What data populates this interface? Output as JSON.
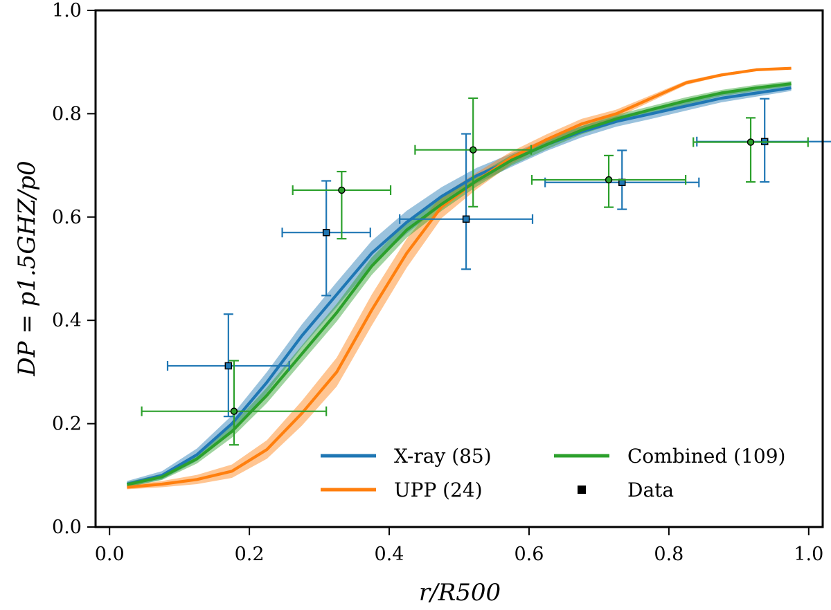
{
  "chart_data": {
    "type": "line",
    "xlabel": "r/R500",
    "ylabel": "DP = p1.5GHZ/p0",
    "xlim": [
      -0.02,
      1.02
    ],
    "ylim": [
      0.0,
      1.0
    ],
    "xticks": [
      "0.0",
      "0.2",
      "0.4",
      "0.6",
      "0.8",
      "1.0"
    ],
    "yticks": [
      "0.0",
      "0.2",
      "0.4",
      "0.6",
      "0.8",
      "1.0"
    ],
    "legend_position": "lower-right",
    "series": [
      {
        "name": "X-ray (85)",
        "color": "#1f77b4",
        "x": [
          0.025,
          0.075,
          0.125,
          0.175,
          0.225,
          0.275,
          0.325,
          0.375,
          0.425,
          0.475,
          0.525,
          0.575,
          0.625,
          0.675,
          0.725,
          0.775,
          0.825,
          0.875,
          0.925,
          0.975
        ],
        "y": [
          0.083,
          0.1,
          0.14,
          0.2,
          0.28,
          0.37,
          0.45,
          0.53,
          0.59,
          0.64,
          0.68,
          0.71,
          0.74,
          0.765,
          0.785,
          0.8,
          0.815,
          0.83,
          0.84,
          0.85
        ],
        "band": [
          0.006,
          0.008,
          0.012,
          0.016,
          0.02,
          0.022,
          0.024,
          0.024,
          0.022,
          0.018,
          0.015,
          0.013,
          0.012,
          0.011,
          0.01,
          0.01,
          0.009,
          0.008,
          0.007,
          0.006
        ]
      },
      {
        "name": "UPP (24)",
        "color": "#ff7f0e",
        "x": [
          0.025,
          0.075,
          0.125,
          0.175,
          0.225,
          0.275,
          0.325,
          0.375,
          0.425,
          0.475,
          0.525,
          0.575,
          0.625,
          0.675,
          0.725,
          0.775,
          0.825,
          0.875,
          0.925,
          0.975
        ],
        "y": [
          0.077,
          0.083,
          0.092,
          0.108,
          0.15,
          0.22,
          0.3,
          0.42,
          0.53,
          0.62,
          0.67,
          0.715,
          0.75,
          0.78,
          0.8,
          0.83,
          0.86,
          0.875,
          0.885,
          0.888
        ],
        "band": [
          0.004,
          0.006,
          0.009,
          0.013,
          0.018,
          0.024,
          0.028,
          0.03,
          0.028,
          0.022,
          0.016,
          0.012,
          0.01,
          0.01,
          0.008,
          0.006,
          0.004,
          0.003,
          0.002,
          0.002
        ]
      },
      {
        "name": "Combined (109)",
        "color": "#2ca02c",
        "x": [
          0.025,
          0.075,
          0.125,
          0.175,
          0.225,
          0.275,
          0.325,
          0.375,
          0.425,
          0.475,
          0.525,
          0.575,
          0.625,
          0.675,
          0.725,
          0.775,
          0.825,
          0.875,
          0.925,
          0.975
        ],
        "y": [
          0.082,
          0.097,
          0.132,
          0.185,
          0.255,
          0.335,
          0.415,
          0.505,
          0.575,
          0.625,
          0.67,
          0.71,
          0.74,
          0.768,
          0.79,
          0.808,
          0.825,
          0.84,
          0.85,
          0.858
        ],
        "band": [
          0.005,
          0.006,
          0.009,
          0.012,
          0.015,
          0.016,
          0.017,
          0.017,
          0.015,
          0.013,
          0.011,
          0.01,
          0.009,
          0.008,
          0.008,
          0.007,
          0.007,
          0.006,
          0.006,
          0.005
        ]
      }
    ],
    "data_points": [
      {
        "group": "X-ray",
        "marker": "square",
        "color": "#1f77b4",
        "x": 0.17,
        "y": 0.312,
        "xerr": 0.087,
        "yerr_low": 0.098,
        "yerr_high": 0.1
      },
      {
        "group": "X-ray",
        "marker": "square",
        "color": "#1f77b4",
        "x": 0.31,
        "y": 0.57,
        "xerr": 0.063,
        "yerr_low": 0.122,
        "yerr_high": 0.1
      },
      {
        "group": "X-ray",
        "marker": "square",
        "color": "#1f77b4",
        "x": 0.51,
        "y": 0.596,
        "xerr": 0.095,
        "yerr_low": 0.097,
        "yerr_high": 0.165
      },
      {
        "group": "X-ray",
        "marker": "square",
        "color": "#1f77b4",
        "x": 0.733,
        "y": 0.667,
        "xerr": 0.11,
        "yerr_low": 0.052,
        "yerr_high": 0.062
      },
      {
        "group": "X-ray",
        "marker": "square",
        "color": "#1f77b4",
        "x": 0.937,
        "y": 0.746,
        "xerr": 0.097,
        "yerr_low": 0.078,
        "yerr_high": 0.083
      },
      {
        "group": "Combined",
        "marker": "circle",
        "color": "#2ca02c",
        "x": 0.178,
        "y": 0.224,
        "xerr": 0.132,
        "yerr_low": 0.065,
        "yerr_high": 0.098
      },
      {
        "group": "Combined",
        "marker": "circle",
        "color": "#2ca02c",
        "x": 0.332,
        "y": 0.652,
        "xerr": 0.07,
        "yerr_low": 0.094,
        "yerr_high": 0.036
      },
      {
        "group": "Combined",
        "marker": "circle",
        "color": "#2ca02c",
        "x": 0.52,
        "y": 0.73,
        "xerr": 0.083,
        "yerr_low": 0.11,
        "yerr_high": 0.1
      },
      {
        "group": "Combined",
        "marker": "circle",
        "color": "#2ca02c",
        "x": 0.714,
        "y": 0.672,
        "xerr": 0.11,
        "yerr_low": 0.053,
        "yerr_high": 0.047
      },
      {
        "group": "Combined",
        "marker": "circle",
        "color": "#2ca02c",
        "x": 0.917,
        "y": 0.745,
        "xerr": 0.082,
        "yerr_low": 0.077,
        "yerr_high": 0.047
      }
    ],
    "legend": [
      {
        "label": "X-ray (85)",
        "kind": "line",
        "color": "#1f77b4"
      },
      {
        "label": "UPP (24)",
        "kind": "line",
        "color": "#ff7f0e"
      },
      {
        "label": "Combined (109)",
        "kind": "line",
        "color": "#2ca02c"
      },
      {
        "label": "Data",
        "kind": "marker",
        "color": "#000000"
      }
    ]
  }
}
